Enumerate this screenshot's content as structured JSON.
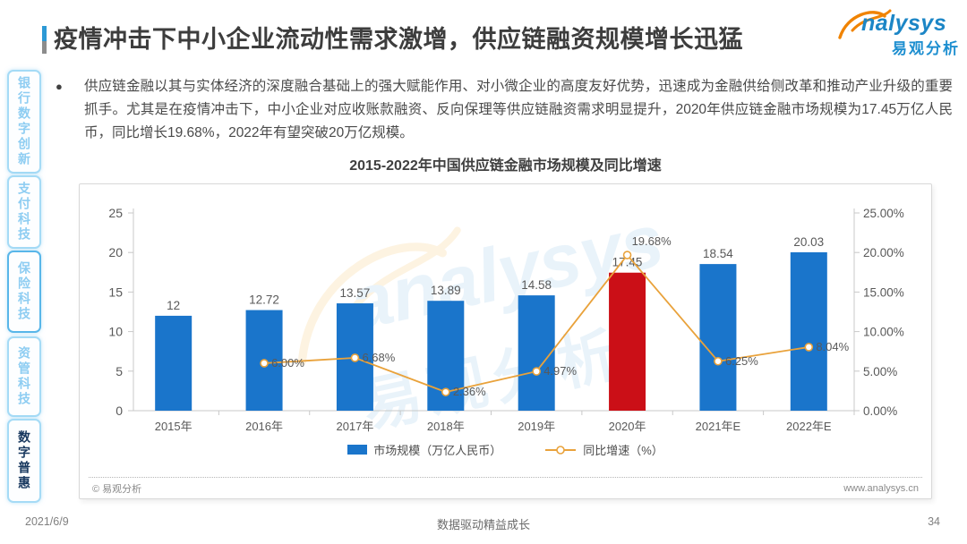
{
  "header": {
    "title": "疫情冲击下中小企业流动性需求激增，供应链融资规模增长迅猛",
    "logo": {
      "brand": "nalysys",
      "brand_cn": "易观分析"
    }
  },
  "sidebar": {
    "tabs": [
      {
        "label": "银行数字创新",
        "active": false
      },
      {
        "label": "支付科技",
        "active": false
      },
      {
        "label": "保险科技",
        "active": false
      },
      {
        "label": "资管科技",
        "active": false
      },
      {
        "label": "数字普惠",
        "active": true
      }
    ]
  },
  "intro": {
    "bullet": "●",
    "text": "供应链金融以其与实体经济的深度融合基础上的强大赋能作用、对小微企业的高度友好优势，迅速成为金融供给侧改革和推动产业升级的重要抓手。尤其是在疫情冲击下，中小企业对应收账款融资、反向保理等供应链融资需求明显提升，2020年供应链金融市场规模为17.45万亿人民币，同比增长19.68%，2022年有望突破20万亿规模。"
  },
  "chart_data": {
    "type": "bar+line",
    "title": "2015-2022年中国供应链金融市场规模及同比增速",
    "categories": [
      "2015年",
      "2016年",
      "2017年",
      "2018年",
      "2019年",
      "2020年",
      "2021年E",
      "2022年E"
    ],
    "series": [
      {
        "name": "市场规模（万亿人民币）",
        "type": "bar",
        "axis": "left",
        "values": [
          12,
          12.72,
          13.57,
          13.89,
          14.58,
          17.45,
          18.54,
          20.03
        ]
      },
      {
        "name": "同比增速（%）",
        "type": "line",
        "axis": "right",
        "values": [
          null,
          6.0,
          6.68,
          2.36,
          4.97,
          19.68,
          6.25,
          8.04
        ]
      }
    ],
    "highlight_index": 5,
    "left_axis": {
      "ticks": [
        0,
        5,
        10,
        15,
        20,
        25
      ],
      "max": 25
    },
    "right_axis": {
      "tick_labels": [
        "0.00%",
        "5.00%",
        "10.00%",
        "15.00%",
        "20.00%",
        "25.00%"
      ],
      "max": 25
    },
    "legend": [
      "市场规模（万亿人民币）",
      "同比增速（%）"
    ],
    "grid": false,
    "legend_position": "bottom",
    "colors": {
      "bar": "#1a75cb",
      "bar_highlight": "#cb0f17",
      "line": "#e9a23b",
      "axis": "#c8c8c8",
      "label": "#595959"
    }
  },
  "card_footer": {
    "copyright": "© 易观分析",
    "website": "www.analysys.cn"
  },
  "page_footer": {
    "date": "2021/6/9",
    "motto": "数据驱动精益成长",
    "page": "34"
  },
  "watermark": {
    "text_en": "analysys",
    "text_cn": "易观分析"
  }
}
